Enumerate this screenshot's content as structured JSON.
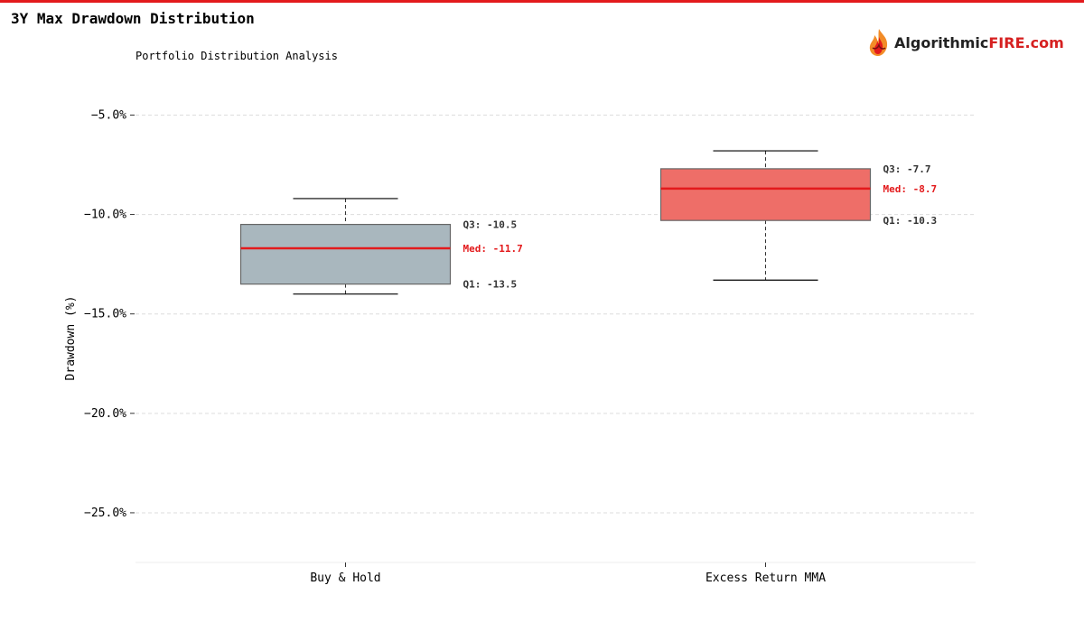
{
  "header": {
    "title": "3Y Max Drawdown Distribution",
    "subtitle": "Portfolio Distribution Analysis"
  },
  "brand": {
    "name_part1": "Algorithmic",
    "name_part2": "FIRE.com",
    "icon": "flame-logo-icon"
  },
  "colors": {
    "accent": "#e31a1c",
    "brand_dark": "#222222",
    "buyhold_box": "#a9b7be",
    "mma_box": "#ee6e68",
    "grid": "#dddddd"
  },
  "chart_data": {
    "type": "box",
    "ylabel": "Drawdown (%)",
    "ylim": [
      -27.5,
      -3.3
    ],
    "yticks": [
      -5,
      -10,
      -15,
      -20,
      -25
    ],
    "ytick_labels": [
      "−5.0%",
      "−10.0%",
      "−15.0%",
      "−20.0%",
      "−25.0%"
    ],
    "grid": true,
    "categories": [
      "Buy & Hold",
      "Excess Return MMA"
    ],
    "boxes": [
      {
        "name": "Buy & Hold",
        "whisker_low": -14.0,
        "q1": -13.5,
        "median": -11.7,
        "q3": -10.5,
        "whisker_high": -9.2,
        "q3_label": "Q3: -10.5",
        "median_label": "Med: -11.7",
        "q1_label": "Q1: -13.5",
        "color": "#a9b7be"
      },
      {
        "name": "Excess Return MMA",
        "whisker_low": -13.3,
        "q1": -10.3,
        "median": -8.7,
        "q3": -7.7,
        "whisker_high": -6.8,
        "q3_label": "Q3: -7.7",
        "median_label": "Med: -8.7",
        "q1_label": "Q1: -10.3",
        "color": "#ee6e68"
      }
    ]
  }
}
